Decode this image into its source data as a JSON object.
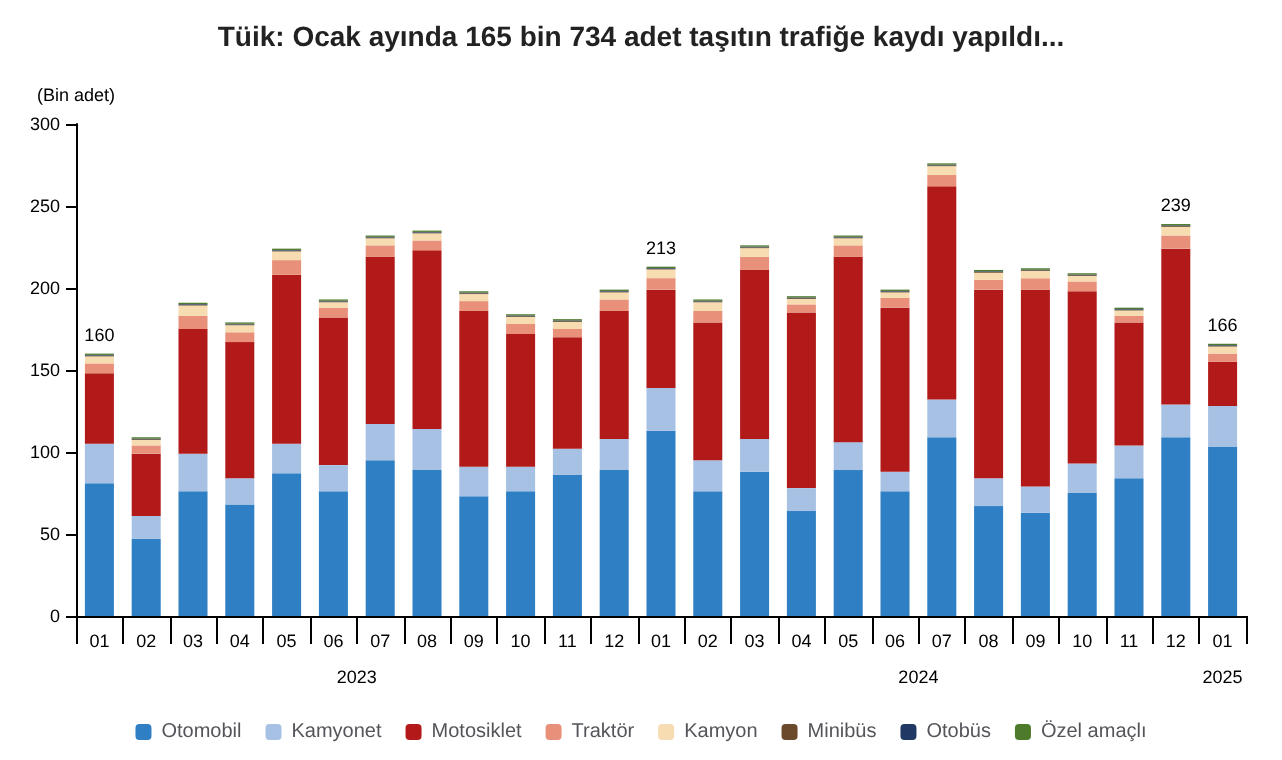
{
  "chart_data": {
    "type": "bar",
    "stacked": true,
    "title": "Tüik: Ocak ayında 165 bin 734 adet taşıtın trafiğe kaydı yapıldı...",
    "ylabel": "(Bin adet)",
    "categories": [
      "01",
      "02",
      "03",
      "04",
      "05",
      "06",
      "07",
      "08",
      "09",
      "10",
      "11",
      "12",
      "01",
      "02",
      "03",
      "04",
      "05",
      "06",
      "07",
      "08",
      "09",
      "10",
      "11",
      "12",
      "01"
    ],
    "annotations": [
      "2023",
      "2024",
      "2025"
    ],
    "ylim": [
      0,
      300
    ],
    "yticks": [
      0,
      50,
      100,
      150,
      200,
      250,
      300
    ],
    "legend": "bottom",
    "totals": [
      "160",
      null,
      null,
      null,
      null,
      null,
      null,
      null,
      null,
      null,
      null,
      null,
      "213",
      null,
      null,
      null,
      null,
      null,
      null,
      null,
      null,
      null,
      null,
      "239",
      "166"
    ],
    "series": [
      {
        "name": "Otomobil",
        "color": "#2e7fc4",
        "values": [
          81,
          47,
          76,
          68,
          87,
          76,
          95,
          89,
          73,
          76,
          86,
          89,
          113,
          76,
          88,
          64,
          89,
          76,
          109,
          67,
          63,
          75,
          84,
          109,
          103
        ]
      },
      {
        "name": "Kamyonet",
        "color": "#a6c1e4",
        "values": [
          24,
          14,
          23,
          16,
          18,
          16,
          22,
          25,
          18,
          15,
          16,
          19,
          26,
          19,
          20,
          14,
          17,
          12,
          23,
          17,
          16,
          18,
          20,
          20,
          25
        ]
      },
      {
        "name": "Motosiklet",
        "color": "#b21a1a",
        "values": [
          43,
          38,
          76,
          83,
          103,
          90,
          102,
          109,
          95,
          81,
          68,
          78,
          60,
          84,
          103,
          107,
          113,
          100,
          130,
          115,
          120,
          105,
          75,
          95,
          27
        ]
      },
      {
        "name": "Traktör",
        "color": "#e8907a",
        "values": [
          6,
          5,
          8,
          6,
          9,
          6,
          7,
          6,
          6,
          6,
          5,
          7,
          7,
          7,
          8,
          5,
          7,
          6,
          7,
          6,
          7,
          6,
          4,
          8,
          5
        ]
      },
      {
        "name": "Kamyon",
        "color": "#f6dcb0",
        "values": [
          4.3,
          3.3,
          6.3,
          4.3,
          5.3,
          3.3,
          4.3,
          4.3,
          4.3,
          4.3,
          4.3,
          4.3,
          5.3,
          5.3,
          5.3,
          3.3,
          4.3,
          3.3,
          5.3,
          4.3,
          4.3,
          3.3,
          3.3,
          5.3,
          4.3
        ]
      },
      {
        "name": "Minibüs",
        "color": "#6b4a2b",
        "values": [
          0.5,
          0.5,
          0.5,
          0.5,
          0.5,
          0.5,
          0.5,
          0.5,
          0.5,
          0.5,
          0.5,
          0.5,
          0.5,
          0.5,
          0.5,
          0.5,
          0.5,
          0.5,
          0.5,
          0.5,
          0.5,
          0.5,
          0.5,
          0.5,
          0.5
        ]
      },
      {
        "name": "Otobüs",
        "color": "#1f3864",
        "values": [
          0.4,
          0.4,
          0.4,
          0.4,
          0.4,
          0.4,
          0.4,
          0.4,
          0.4,
          0.4,
          0.4,
          0.4,
          0.4,
          0.4,
          0.4,
          0.4,
          0.4,
          0.4,
          0.4,
          0.4,
          0.4,
          0.4,
          0.4,
          0.4,
          0.4
        ]
      },
      {
        "name": "Özel amaçlı",
        "color": "#4e7a2c",
        "values": [
          0.8,
          0.8,
          0.8,
          0.8,
          0.8,
          0.8,
          0.8,
          0.8,
          0.8,
          0.8,
          0.8,
          0.8,
          0.8,
          0.8,
          0.8,
          0.8,
          0.8,
          0.8,
          0.8,
          0.8,
          0.8,
          0.8,
          0.8,
          0.8,
          0.8
        ]
      }
    ]
  }
}
